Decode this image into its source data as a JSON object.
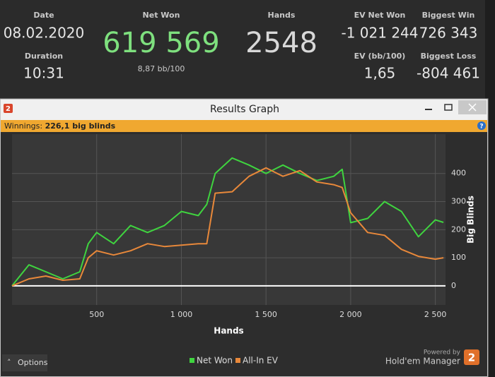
{
  "header": {
    "date_label": "Date",
    "date": "08.02.2020",
    "duration_label": "Duration",
    "duration": "10:31",
    "net_won_label": "Net Won",
    "net_won": "619 569",
    "net_won_rate": "8,87 bb/100",
    "hands_label": "Hands",
    "hands": "2548",
    "ev_net_won_label": "EV Net Won",
    "ev_net_won": "-1 021 244",
    "ev_rate_label": "EV (bb/100)",
    "ev_rate": "1,65",
    "biggest_win_label": "Biggest Win",
    "biggest_win": "726 343",
    "biggest_loss_label": "Biggest Loss",
    "biggest_loss": "-804 461"
  },
  "window": {
    "logo": "2",
    "title": "Results Graph",
    "winnings_label": "Winnings:",
    "winnings": "226,1 big blinds",
    "options": "Options",
    "powered_by": "Powered by",
    "brand": "Hold'em Manager"
  },
  "chart_data": {
    "type": "line",
    "xlabel": "Hands",
    "ylabel": "Big Blinds",
    "x": [
      0,
      100,
      200,
      300,
      400,
      450,
      500,
      600,
      700,
      800,
      900,
      1000,
      1100,
      1150,
      1200,
      1300,
      1400,
      1500,
      1600,
      1700,
      1800,
      1900,
      1950,
      2000,
      2100,
      2200,
      2300,
      2400,
      2500,
      2548
    ],
    "series": [
      {
        "name": "Net Won",
        "color": "#3fd43f",
        "values": [
          0,
          75,
          50,
          25,
          50,
          150,
          190,
          150,
          215,
          190,
          215,
          265,
          250,
          290,
          400,
          455,
          430,
          400,
          430,
          400,
          375,
          390,
          415,
          225,
          240,
          300,
          265,
          175,
          235,
          226
        ]
      },
      {
        "name": "All-In EV",
        "color": "#e8883a",
        "values": [
          0,
          25,
          35,
          20,
          25,
          100,
          125,
          110,
          125,
          150,
          140,
          145,
          150,
          150,
          330,
          335,
          390,
          420,
          390,
          410,
          370,
          360,
          350,
          260,
          190,
          180,
          130,
          105,
          95,
          100
        ]
      }
    ],
    "xlim": [
      0,
      2560
    ],
    "ylim": [
      -68,
      540
    ],
    "xticks": [
      500,
      {
        "value": 1000,
        "label": "1 000"
      },
      {
        "value": 1500,
        "label": "1 500"
      },
      {
        "value": 2000,
        "label": "2 000"
      },
      {
        "value": 2500,
        "label": "2 500"
      }
    ],
    "yticks": [
      0,
      100,
      200,
      300,
      400
    ],
    "grid": true,
    "legend": "bottom"
  }
}
